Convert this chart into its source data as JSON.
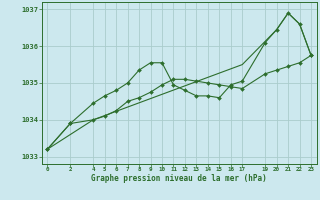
{
  "bg_color": "#cce8ee",
  "grid_color": "#aacccc",
  "line_color": "#2d6e2d",
  "title": "Graphe pression niveau de la mer (hPa)",
  "xlim": [
    -0.5,
    23.5
  ],
  "ylim": [
    1032.8,
    1037.2
  ],
  "yticks": [
    1033,
    1034,
    1035,
    1036,
    1037
  ],
  "xticks": [
    0,
    2,
    4,
    5,
    6,
    7,
    8,
    9,
    10,
    11,
    12,
    13,
    14,
    15,
    16,
    17,
    19,
    20,
    21,
    22,
    23
  ],
  "series": [
    {
      "x": [
        0,
        2,
        4,
        5,
        6,
        7,
        8,
        9,
        10,
        11,
        12,
        13,
        14,
        15,
        16,
        17,
        19,
        20,
        21,
        22,
        23
      ],
      "y": [
        1033.2,
        1033.9,
        1034.45,
        1034.65,
        1034.8,
        1035.0,
        1035.35,
        1035.55,
        1035.55,
        1034.95,
        1034.8,
        1034.65,
        1034.65,
        1034.6,
        1034.95,
        1035.05,
        1036.1,
        1036.45,
        1036.9,
        1036.6,
        1035.75
      ],
      "has_markers": true
    },
    {
      "x": [
        0,
        2,
        4,
        5,
        6,
        7,
        8,
        9,
        10,
        11,
        12,
        13,
        14,
        15,
        16,
        17,
        19,
        20,
        21,
        22,
        23
      ],
      "y": [
        1033.2,
        1033.9,
        1034.0,
        1034.1,
        1034.25,
        1034.5,
        1034.6,
        1034.75,
        1034.95,
        1035.1,
        1035.1,
        1035.05,
        1035.0,
        1034.95,
        1034.9,
        1034.85,
        1035.25,
        1035.35,
        1035.45,
        1035.55,
        1035.75
      ],
      "has_markers": true
    },
    {
      "x": [
        0,
        4,
        17,
        20,
        21,
        22,
        23
      ],
      "y": [
        1033.2,
        1034.0,
        1035.5,
        1036.45,
        1036.9,
        1036.6,
        1035.75
      ],
      "has_markers": false
    }
  ]
}
